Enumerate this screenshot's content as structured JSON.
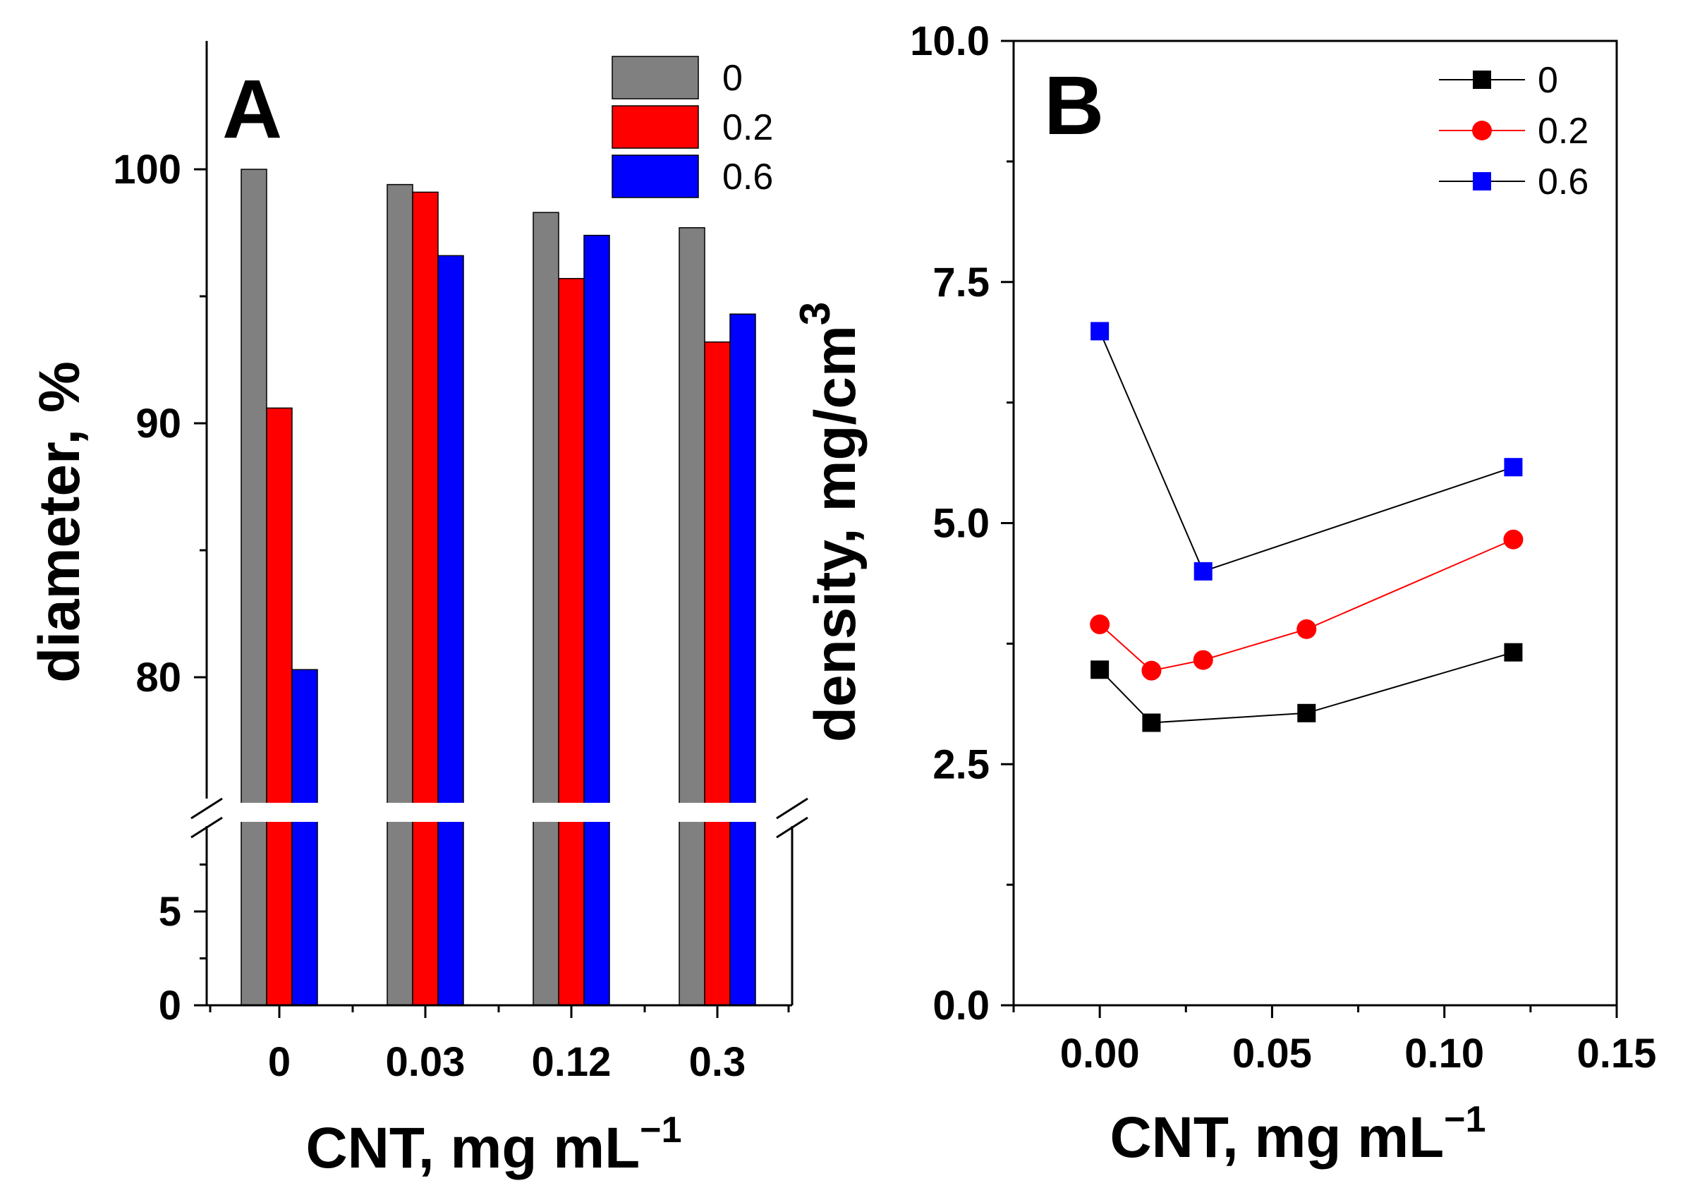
{
  "chart_data": [
    {
      "panel": "A",
      "type": "bar",
      "xlabel": "CNT, mg mL",
      "xlabel_sup": "−1",
      "ylabel": "diameter, %",
      "categories": [
        "0",
        "0.03",
        "0.12",
        "0.3"
      ],
      "series": [
        {
          "name": "0",
          "color": "#808080",
          "values": [
            100.0,
            99.4,
            98.3,
            97.7
          ]
        },
        {
          "name": "0.2",
          "color": "#ff0000",
          "values": [
            90.6,
            99.1,
            95.7,
            93.2
          ]
        },
        {
          "name": "0.6",
          "color": "#0000ff",
          "values": [
            80.3,
            96.6,
            97.4,
            94.3
          ]
        }
      ],
      "y_axis_break": {
        "lower_range": [
          0,
          9
        ],
        "upper_range": [
          75,
          105
        ]
      },
      "yticks_upper": [
        "80",
        "90",
        "100"
      ],
      "yticks_lower": [
        "0",
        "5"
      ],
      "legend_position": "top-right"
    },
    {
      "panel": "B",
      "type": "line",
      "xlabel": "CNT, mg mL",
      "xlabel_sup": "−1",
      "ylabel": "density, mg/cm",
      "ylabel_sup": "3",
      "xlim": [
        -0.025,
        0.15
      ],
      "ylim": [
        0,
        10
      ],
      "xticks": [
        "0.00",
        "0.05",
        "0.10",
        "0.15"
      ],
      "yticks": [
        "0.0",
        "2.5",
        "5.0",
        "7.5",
        "10.0"
      ],
      "series": [
        {
          "name": "0",
          "color": "#000000",
          "line_color": "#000000",
          "marker": "square",
          "x": [
            0,
            0.015,
            0.06,
            0.12
          ],
          "y": [
            3.48,
            2.93,
            3.03,
            3.66
          ]
        },
        {
          "name": "0.2",
          "color": "#ff0000",
          "line_color": "#ff0000",
          "marker": "circle",
          "x": [
            0,
            0.015,
            0.03,
            0.06,
            0.12
          ],
          "y": [
            3.95,
            3.47,
            3.58,
            3.9,
            4.83
          ]
        },
        {
          "name": "0.6",
          "color": "#0000ff",
          "line_color": "#000000",
          "marker": "square",
          "x": [
            0,
            0.03,
            0.12
          ],
          "y": [
            6.99,
            4.5,
            5.58
          ]
        }
      ],
      "legend_position": "top-right"
    }
  ]
}
